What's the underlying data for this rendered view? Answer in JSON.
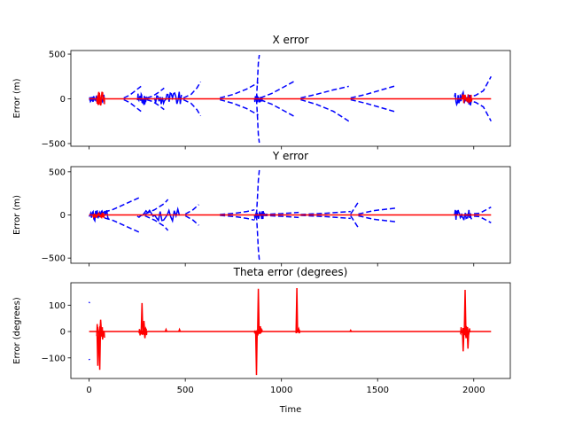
{
  "chart_data": [
    {
      "type": "line",
      "title": "X error",
      "xlabel": "",
      "ylabel": "Error (m)",
      "xlim": [
        -95,
        2190
      ],
      "ylim": [
        -530,
        540
      ],
      "xticks": [
        0,
        500,
        1000,
        1500,
        2000
      ],
      "xtick_labels_shown": false,
      "yticks": [
        -500,
        0,
        500
      ],
      "ytick_labels": [
        "−500",
        "0",
        "500"
      ],
      "grid": false,
      "series": [
        {
          "style": "dashed",
          "color": "#0000ff",
          "segments": [
            {
              "x": [
                0,
                20,
                40,
                60
              ],
              "y": [
                10,
                15,
                20,
                25
              ]
            },
            {
              "x": [
                0,
                20,
                40,
                60
              ],
              "y": [
                -10,
                -15,
                -20,
                -25
              ]
            },
            {
              "x": [
                180,
                210,
                240,
                270
              ],
              "y": [
                10,
                40,
                90,
                140
              ]
            },
            {
              "x": [
                180,
                210,
                240,
                270
              ],
              "y": [
                -10,
                -40,
                -90,
                -140
              ]
            },
            {
              "x": [
                300,
                330,
                360,
                390
              ],
              "y": [
                10,
                30,
                70,
                120
              ]
            },
            {
              "x": [
                300,
                330,
                360,
                390
              ],
              "y": [
                -10,
                -30,
                -70,
                -120
              ]
            },
            {
              "x": [
                490,
                530,
                560,
                580
              ],
              "y": [
                10,
                50,
                120,
                190
              ]
            },
            {
              "x": [
                490,
                530,
                560,
                580
              ],
              "y": [
                -10,
                -50,
                -120,
                -190
              ]
            },
            {
              "x": [
                680,
                750,
                820,
                880
              ],
              "y": [
                10,
                50,
                110,
                180
              ]
            },
            {
              "x": [
                680,
                750,
                820,
                880
              ],
              "y": [
                -10,
                -50,
                -110,
                -180
              ]
            },
            {
              "x": [
                870,
                875,
                880,
                885
              ],
              "y": [
                0,
                200,
                400,
                490
              ]
            },
            {
              "x": [
                870,
                875,
                880,
                885
              ],
              "y": [
                0,
                -200,
                -400,
                -490
              ]
            },
            {
              "x": [
                890,
                950,
                1010,
                1070
              ],
              "y": [
                10,
                60,
                130,
                200
              ]
            },
            {
              "x": [
                890,
                950,
                1010,
                1070
              ],
              "y": [
                -10,
                -60,
                -130,
                -200
              ]
            },
            {
              "x": [
                1100,
                1180,
                1270,
                1350
              ],
              "y": [
                10,
                50,
                100,
                140
              ]
            },
            {
              "x": [
                1100,
                1180,
                1270,
                1350
              ],
              "y": [
                -10,
                -60,
                -140,
                -250
              ]
            },
            {
              "x": [
                1360,
                1440,
                1520,
                1600
              ],
              "y": [
                10,
                50,
                100,
                150
              ]
            },
            {
              "x": [
                1360,
                1440,
                1520,
                1600
              ],
              "y": [
                -10,
                -50,
                -100,
                -150
              ]
            },
            {
              "x": [
                1960,
                2010,
                2050,
                2090
              ],
              "y": [
                10,
                40,
                90,
                250
              ]
            },
            {
              "x": [
                1960,
                2010,
                2050,
                2090
              ],
              "y": [
                -10,
                -40,
                -90,
                -250
              ]
            }
          ],
          "noise_bursts": [
            {
              "x": [
                0,
                80
              ],
              "amplitude": 40
            },
            {
              "x": [
                250,
                300
              ],
              "amplitude": 70
            },
            {
              "x": [
                340,
                480
              ],
              "amplitude": 80
            },
            {
              "x": [
                860,
                900
              ],
              "amplitude": 40
            },
            {
              "x": [
                1900,
                1990
              ],
              "amplitude": 80
            }
          ]
        },
        {
          "style": "solid",
          "color": "#ff0000",
          "segments": [
            {
              "x": [
                0,
                2090
              ],
              "y": [
                0,
                0
              ]
            }
          ],
          "noise_bursts": [
            {
              "x": [
                40,
                80
              ],
              "amplitude": 80
            },
            {
              "x": [
                1940,
                1990
              ],
              "amplitude": 50
            }
          ]
        }
      ]
    },
    {
      "type": "line",
      "title": "Y error",
      "xlabel": "",
      "ylabel": "Error (m)",
      "xlim": [
        -95,
        2190
      ],
      "ylim": [
        -560,
        560
      ],
      "xticks": [
        0,
        500,
        1000,
        1500,
        2000
      ],
      "xtick_labels_shown": false,
      "yticks": [
        -500,
        0,
        500
      ],
      "ytick_labels": [
        "−500",
        "0",
        "500"
      ],
      "grid": false,
      "series": [
        {
          "style": "dashed",
          "color": "#0000ff",
          "segments": [
            {
              "x": [
                40,
                120,
                200,
                270
              ],
              "y": [
                10,
                60,
                140,
                210
              ]
            },
            {
              "x": [
                40,
                120,
                200,
                270
              ],
              "y": [
                -10,
                -60,
                -140,
                -210
              ]
            },
            {
              "x": [
                290,
                340,
                390,
                410
              ],
              "y": [
                10,
                60,
                130,
                180
              ]
            },
            {
              "x": [
                290,
                340,
                390,
                410
              ],
              "y": [
                -10,
                -60,
                -130,
                -180
              ]
            },
            {
              "x": [
                500,
                540,
                570
              ],
              "y": [
                10,
                60,
                120
              ]
            },
            {
              "x": [
                500,
                540,
                570
              ],
              "y": [
                -10,
                -60,
                -120
              ]
            },
            {
              "x": [
                680,
                760,
                820,
                860
              ],
              "y": [
                5,
                20,
                40,
                60
              ]
            },
            {
              "x": [
                680,
                760,
                820,
                860
              ],
              "y": [
                -5,
                -20,
                -40,
                -60
              ]
            },
            {
              "x": [
                870,
                875,
                880,
                885
              ],
              "y": [
                0,
                200,
                400,
                520
              ]
            },
            {
              "x": [
                870,
                875,
                880,
                885
              ],
              "y": [
                0,
                -200,
                -400,
                -520
              ]
            },
            {
              "x": [
                900,
                1000,
                1090
              ],
              "y": [
                5,
                15,
                30
              ]
            },
            {
              "x": [
                900,
                1000,
                1090
              ],
              "y": [
                -5,
                -15,
                -30
              ]
            },
            {
              "x": [
                1100,
                1230,
                1360
              ],
              "y": [
                5,
                20,
                40
              ]
            },
            {
              "x": [
                1100,
                1230,
                1360
              ],
              "y": [
                -5,
                -20,
                -40
              ]
            },
            {
              "x": [
                1360,
                1380,
                1400
              ],
              "y": [
                10,
                80,
                150
              ]
            },
            {
              "x": [
                1360,
                1380,
                1400
              ],
              "y": [
                -10,
                -80,
                -150
              ]
            },
            {
              "x": [
                1400,
                1480,
                1600
              ],
              "y": [
                10,
                50,
                80
              ]
            },
            {
              "x": [
                1400,
                1480,
                1600
              ],
              "y": [
                -10,
                -50,
                -80
              ]
            },
            {
              "x": [
                1960,
                2030,
                2090
              ],
              "y": [
                5,
                20,
                90
              ]
            },
            {
              "x": [
                1960,
                2030,
                2090
              ],
              "y": [
                -5,
                -20,
                -90
              ]
            }
          ],
          "noise_bursts": [
            {
              "x": [
                0,
                100
              ],
              "amplitude": 70
            },
            {
              "x": [
                250,
                470
              ],
              "amplitude": 70
            },
            {
              "x": [
                860,
                910
              ],
              "amplitude": 50
            },
            {
              "x": [
                1900,
                1990
              ],
              "amplitude": 60
            }
          ]
        },
        {
          "style": "solid",
          "color": "#ff0000",
          "segments": [
            {
              "x": [
                0,
                2090
              ],
              "y": [
                0,
                0
              ]
            }
          ],
          "noise_bursts": [
            {
              "x": [
                20,
                80
              ],
              "amplitude": 30
            }
          ]
        }
      ]
    },
    {
      "type": "line",
      "title": "Theta error (degrees)",
      "xlabel": "Time",
      "ylabel": "Error (degrees)",
      "xlim": [
        -95,
        2190
      ],
      "ylim": [
        -178,
        185
      ],
      "xticks": [
        0,
        500,
        1000,
        1500,
        2000
      ],
      "xtick_labels": [
        "0",
        "500",
        "1000",
        "1500",
        "2000"
      ],
      "yticks": [
        -100,
        0,
        100
      ],
      "ytick_labels": [
        "−100",
        "0",
        "100"
      ],
      "grid": false,
      "series": [
        {
          "style": "dashed",
          "color": "#0000ff",
          "segments": [
            {
              "x": [
                0,
                2
              ],
              "y": [
                108,
                112
              ]
            },
            {
              "x": [
                0,
                2
              ],
              "y": [
                -104,
                -108
              ]
            }
          ]
        },
        {
          "style": "solid",
          "color": "#ff0000",
          "segments": [
            {
              "x": [
                0,
                2090
              ],
              "y": [
                0,
                0
              ]
            }
          ],
          "spikes": [
            {
              "x": 45,
              "y": -130
            },
            {
              "x": 55,
              "y": -145
            },
            {
              "x": 60,
              "y": 45
            },
            {
              "x": 70,
              "y": -30
            },
            {
              "x": 275,
              "y": 108
            },
            {
              "x": 285,
              "y": 40
            },
            {
              "x": 290,
              "y": -25
            },
            {
              "x": 400,
              "y": 8
            },
            {
              "x": 470,
              "y": 8
            },
            {
              "x": 870,
              "y": -165
            },
            {
              "x": 880,
              "y": 162
            },
            {
              "x": 890,
              "y": 20
            },
            {
              "x": 1080,
              "y": 165
            },
            {
              "x": 1090,
              "y": 10
            },
            {
              "x": 1360,
              "y": 5
            },
            {
              "x": 1945,
              "y": -75
            },
            {
              "x": 1955,
              "y": 158
            },
            {
              "x": 1960,
              "y": -25
            },
            {
              "x": 1970,
              "y": -65
            }
          ],
          "noise_bursts": [
            {
              "x": [
                40,
                80
              ],
              "amplitude": 30
            },
            {
              "x": [
                260,
                300
              ],
              "amplitude": 15
            },
            {
              "x": [
                860,
                900
              ],
              "amplitude": 15
            },
            {
              "x": [
                1075,
                1095
              ],
              "amplitude": 8
            },
            {
              "x": [
                1930,
                1980
              ],
              "amplitude": 20
            }
          ]
        }
      ]
    }
  ]
}
